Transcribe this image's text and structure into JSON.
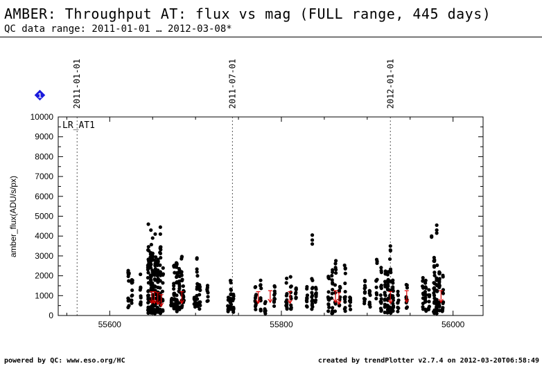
{
  "header": {
    "title": "AMBER: Throughput AT: flux vs mag (FULL range, 445 days)",
    "subtitle": "QC data range: 2011-01-01 … 2012-03-08*"
  },
  "footer": {
    "left": "powered by QC: www.eso.org/HC",
    "right": "created by trendPlotter v2.7.4 on 2012-03-20T06:58:49"
  },
  "badge": {
    "label": "1",
    "color": "#1a1adc"
  },
  "chart_data": {
    "type": "scatter",
    "ylabel": "amber_flux(ADU/s/px)",
    "panel_label": "LR_AT1",
    "xlim": [
      55540,
      56035
    ],
    "ylim": [
      0,
      10000
    ],
    "x_ticks": [
      55600,
      55800,
      56000
    ],
    "y_ticks": [
      0,
      1000,
      2000,
      3000,
      4000,
      5000,
      6000,
      7000,
      8000,
      9000,
      10000
    ],
    "date_markers": [
      {
        "x": 55562,
        "label": "2011-01-01"
      },
      {
        "x": 55743,
        "label": "2011-07-01"
      },
      {
        "x": 55927,
        "label": "2012-01-01"
      }
    ],
    "point_color": "#000000",
    "arrow_color": "#dd0000",
    "clusters": [
      {
        "x": 55622,
        "n": 14,
        "ymin": 400,
        "ymax": 2300
      },
      {
        "x": 55626,
        "n": 10,
        "ymin": 400,
        "ymax": 1800
      },
      {
        "x": 55636,
        "n": 10,
        "ymin": 500,
        "ymax": 2200
      },
      {
        "x": 55645,
        "n": 30,
        "ymin": 100,
        "ymax": 3800
      },
      {
        "x": 55648,
        "n": 36,
        "ymin": 100,
        "ymax": 3600
      },
      {
        "x": 55650,
        "n": 30,
        "ymin": 100,
        "ymax": 3300
      },
      {
        "x": 55653,
        "n": 30,
        "ymin": 100,
        "ymax": 3200
      },
      {
        "x": 55656,
        "n": 28,
        "ymin": 100,
        "ymax": 3000
      },
      {
        "x": 55659,
        "n": 28,
        "ymin": 100,
        "ymax": 3500
      },
      {
        "x": 55662,
        "n": 10,
        "ymin": 200,
        "ymax": 2500
      },
      {
        "x": 55672,
        "n": 10,
        "ymin": 500,
        "ymax": 1600
      },
      {
        "x": 55675,
        "n": 20,
        "ymin": 300,
        "ymax": 2600
      },
      {
        "x": 55678,
        "n": 24,
        "ymin": 200,
        "ymax": 2800
      },
      {
        "x": 55681,
        "n": 20,
        "ymin": 300,
        "ymax": 2400
      },
      {
        "x": 55684,
        "n": 16,
        "ymin": 400,
        "ymax": 3100
      },
      {
        "x": 55686,
        "n": 10,
        "ymin": 500,
        "ymax": 1500
      },
      {
        "x": 55699,
        "n": 8,
        "ymin": 400,
        "ymax": 1600
      },
      {
        "x": 55702,
        "n": 16,
        "ymin": 300,
        "ymax": 3000
      },
      {
        "x": 55705,
        "n": 12,
        "ymin": 300,
        "ymax": 1900
      },
      {
        "x": 55714,
        "n": 8,
        "ymin": 700,
        "ymax": 1600
      },
      {
        "x": 55738,
        "n": 8,
        "ymin": 200,
        "ymax": 1000
      },
      {
        "x": 55741,
        "n": 18,
        "ymin": 100,
        "ymax": 2000
      },
      {
        "x": 55744,
        "n": 10,
        "ymin": 100,
        "ymax": 1100
      },
      {
        "x": 55770,
        "n": 12,
        "ymin": 300,
        "ymax": 1600
      },
      {
        "x": 55776,
        "n": 10,
        "ymin": 200,
        "ymax": 1800
      },
      {
        "x": 55781,
        "n": 8,
        "ymin": 100,
        "ymax": 1100
      },
      {
        "x": 55792,
        "n": 10,
        "ymin": 400,
        "ymax": 1700
      },
      {
        "x": 55806,
        "n": 12,
        "ymin": 200,
        "ymax": 1900
      },
      {
        "x": 55811,
        "n": 10,
        "ymin": 300,
        "ymax": 2500
      },
      {
        "x": 55817,
        "n": 8,
        "ymin": 800,
        "ymax": 1500
      },
      {
        "x": 55830,
        "n": 10,
        "ymin": 300,
        "ymax": 1500
      },
      {
        "x": 55836,
        "n": 14,
        "ymin": 200,
        "ymax": 2000
      },
      {
        "x": 55840,
        "n": 8,
        "ymin": 300,
        "ymax": 1500
      },
      {
        "x": 55855,
        "n": 12,
        "ymin": 200,
        "ymax": 2000
      },
      {
        "x": 55859,
        "n": 14,
        "ymin": 100,
        "ymax": 2500
      },
      {
        "x": 55863,
        "n": 10,
        "ymin": 200,
        "ymax": 2800
      },
      {
        "x": 55868,
        "n": 10,
        "ymin": 300,
        "ymax": 1700
      },
      {
        "x": 55874,
        "n": 14,
        "ymin": 200,
        "ymax": 2700
      },
      {
        "x": 55880,
        "n": 8,
        "ymin": 300,
        "ymax": 1100
      },
      {
        "x": 55897,
        "n": 12,
        "ymin": 300,
        "ymax": 2100
      },
      {
        "x": 55903,
        "n": 8,
        "ymin": 400,
        "ymax": 1400
      },
      {
        "x": 55911,
        "n": 10,
        "ymin": 300,
        "ymax": 2900
      },
      {
        "x": 55916,
        "n": 14,
        "ymin": 200,
        "ymax": 2700
      },
      {
        "x": 55921,
        "n": 16,
        "ymin": 100,
        "ymax": 2400
      },
      {
        "x": 55924,
        "n": 22,
        "ymin": 100,
        "ymax": 2200
      },
      {
        "x": 55927,
        "n": 22,
        "ymin": 100,
        "ymax": 3400
      },
      {
        "x": 55930,
        "n": 16,
        "ymin": 100,
        "ymax": 2000
      },
      {
        "x": 55936,
        "n": 10,
        "ymin": 200,
        "ymax": 1300
      },
      {
        "x": 55946,
        "n": 10,
        "ymin": 300,
        "ymax": 1600
      },
      {
        "x": 55965,
        "n": 12,
        "ymin": 300,
        "ymax": 1900
      },
      {
        "x": 55968,
        "n": 14,
        "ymin": 200,
        "ymax": 1800
      },
      {
        "x": 55972,
        "n": 8,
        "ymin": 300,
        "ymax": 1500
      },
      {
        "x": 55978,
        "n": 24,
        "ymin": 100,
        "ymax": 3000
      },
      {
        "x": 55981,
        "n": 20,
        "ymin": 100,
        "ymax": 2700
      },
      {
        "x": 55984,
        "n": 18,
        "ymin": 100,
        "ymax": 2300
      },
      {
        "x": 55988,
        "n": 12,
        "ymin": 200,
        "ymax": 2100
      }
    ],
    "outliers": [
      {
        "x": 55645,
        "y": 4600
      },
      {
        "x": 55648,
        "y": 4300
      },
      {
        "x": 55650,
        "y": 3900
      },
      {
        "x": 55653,
        "y": 4100
      },
      {
        "x": 55659,
        "y": 4450
      },
      {
        "x": 55659,
        "y": 4100
      },
      {
        "x": 55836,
        "y": 4050
      },
      {
        "x": 55836,
        "y": 3800
      },
      {
        "x": 55836,
        "y": 3600
      },
      {
        "x": 55927,
        "y": 3500
      },
      {
        "x": 55927,
        "y": 3300
      },
      {
        "x": 55975,
        "y": 4000
      },
      {
        "x": 55975,
        "y": 3950
      },
      {
        "x": 55981,
        "y": 4550
      },
      {
        "x": 55981,
        "y": 4300
      },
      {
        "x": 55981,
        "y": 4150
      }
    ],
    "arrows": [
      {
        "x": 55649,
        "y": 1200
      },
      {
        "x": 55652,
        "y": 1200
      },
      {
        "x": 55656,
        "y": 1150
      },
      {
        "x": 55660,
        "y": 1050
      },
      {
        "x": 55684,
        "y": 1200
      },
      {
        "x": 55773,
        "y": 1200
      },
      {
        "x": 55787,
        "y": 1250
      },
      {
        "x": 55810,
        "y": 1200
      },
      {
        "x": 55863,
        "y": 1250
      },
      {
        "x": 55867,
        "y": 1150
      },
      {
        "x": 55927,
        "y": 1200
      },
      {
        "x": 55946,
        "y": 1250
      },
      {
        "x": 55986,
        "y": 1250
      }
    ]
  }
}
